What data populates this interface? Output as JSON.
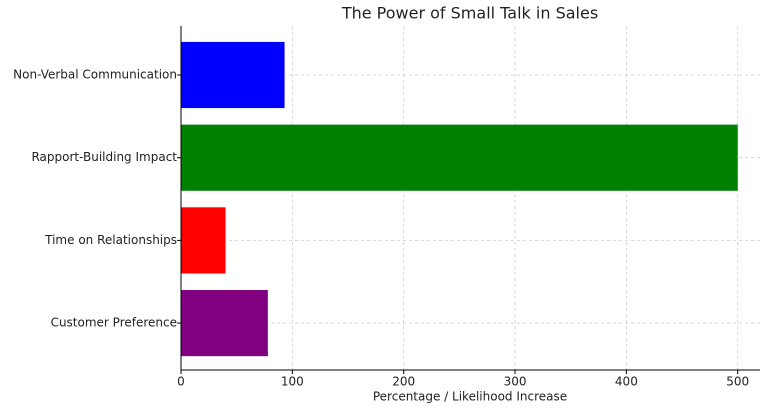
{
  "chart_data": {
    "type": "barh",
    "title": "The Power of Small Talk in Sales",
    "xlabel": "Percentage / Likelihood Increase",
    "categories": [
      "Non-Verbal Communication",
      "Rapport-Building Impact",
      "Time on Relationships",
      "Customer Preference"
    ],
    "values": [
      93,
      500,
      40,
      78
    ],
    "colors": [
      "#0000ff",
      "#008000",
      "#ff0000",
      "#800080"
    ],
    "xlim": [
      0,
      520
    ],
    "xticks": [
      0,
      100,
      200,
      300,
      400,
      500
    ],
    "grid": true
  }
}
